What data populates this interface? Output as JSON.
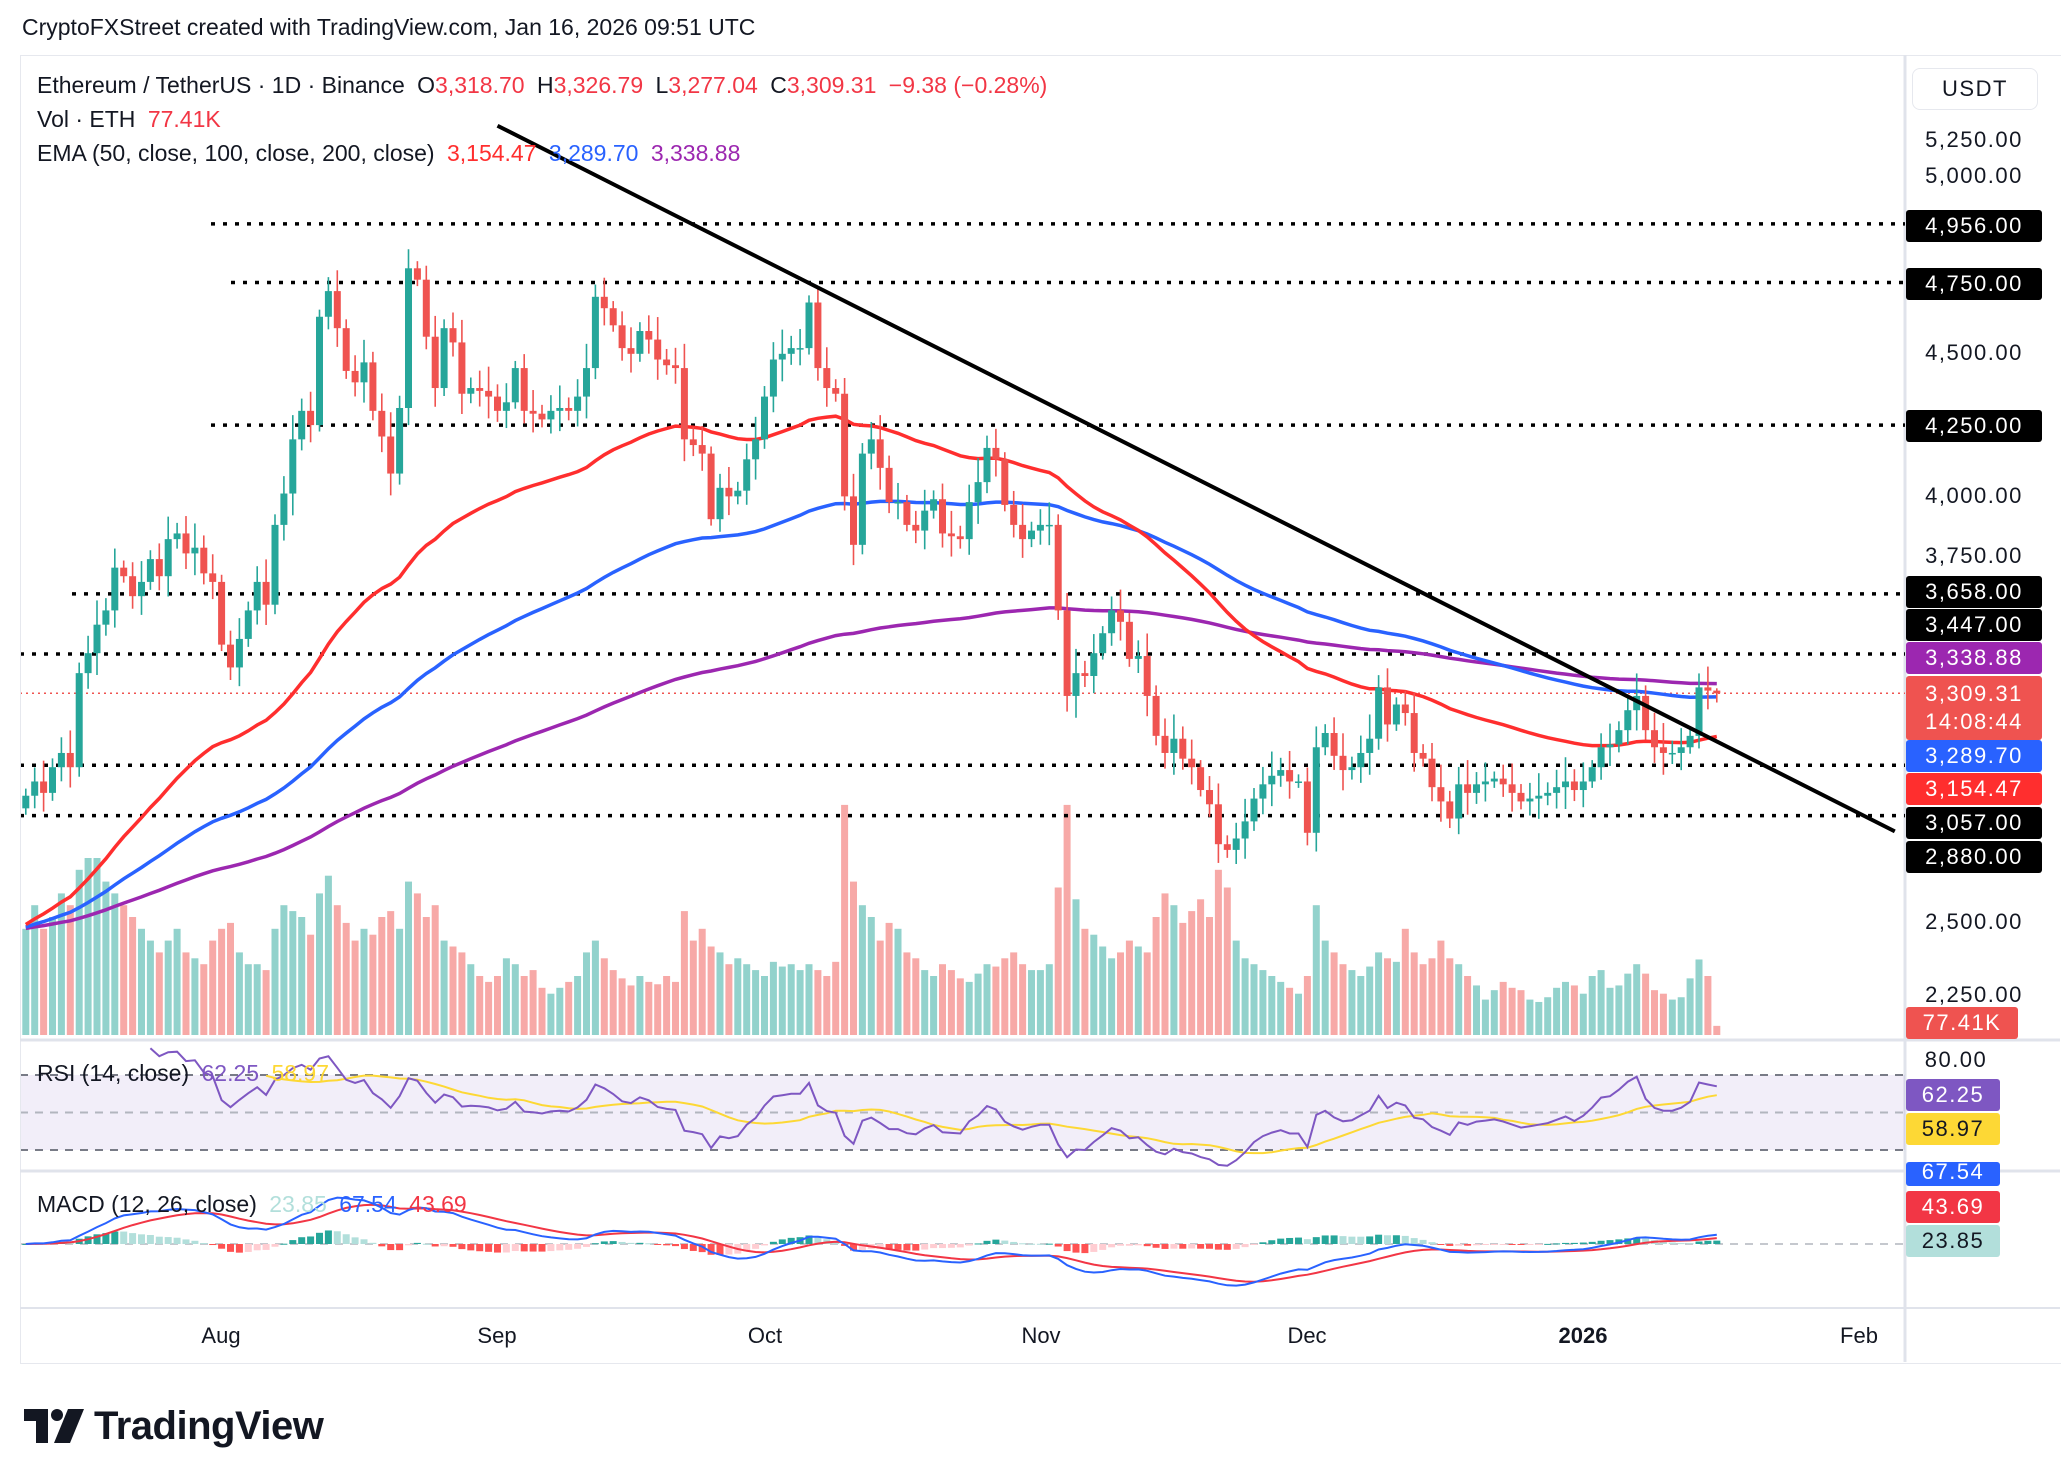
{
  "header": {
    "text": "CryptoFXStreet created with TradingView.com, Jan 16, 2026 09:51 UTC"
  },
  "legend": {
    "symbol": "Ethereum / TetherUS · 1D · Binance",
    "o_label": "O",
    "o": "3,318.70",
    "h_label": "H",
    "h": "3,326.79",
    "l_label": "L",
    "l": "3,277.04",
    "c_label": "C",
    "c": "3,309.31",
    "change": "−9.38 (−0.28%)",
    "vol_label": "Vol · ETH",
    "vol": "77.41K",
    "ema_label": "EMA (50, close, 100, close, 200, close)",
    "ema50": "3,154.47",
    "ema100": "3,289.70",
    "ema200": "3,338.88",
    "rsi_label": "RSI (14, close)",
    "rsi": "62.25",
    "rsi_ma": "58.97",
    "macd_label": "MACD (12, 26, close)",
    "macd_hist": "23.85",
    "macd": "67.54",
    "macd_signal": "43.69"
  },
  "price_axis": {
    "currency": "USDT",
    "ticks": [
      "5,250.00",
      "5,000.00",
      "4,500.00",
      "4,000.00",
      "3,750.00",
      "2,500.00",
      "2,250.00"
    ],
    "level_labels": [
      "4,956.00",
      "4,750.00",
      "4,250.00",
      "3,658.00",
      "3,447.00",
      "3,057.00",
      "2,880.00"
    ],
    "ema200_label": "3,338.88",
    "price_label": "3,309.31",
    "countdown": "14:08:44",
    "ema100_label": "3,289.70",
    "ema50_label": "3,154.47",
    "volume_label": "77.41K",
    "rsi_tick": "80.00",
    "rsi_label": "62.25",
    "rsi_ma_label": "58.97",
    "macd_label": "67.54",
    "signal_label": "43.69",
    "hist_label": "23.85"
  },
  "time_axis": [
    "Aug",
    "Sep",
    "Oct",
    "Nov",
    "Dec",
    "2026",
    "Feb"
  ],
  "logo": {
    "text": "TradingView"
  },
  "colors": {
    "up": "#26A69A",
    "down": "#EF5350",
    "vol_up": "#92D2CC",
    "vol_down": "#F7A9A7",
    "ema50": "#FF2E2E",
    "ema100": "#2962FF",
    "ema200": "#9C27B0",
    "rsi": "#7E57C2",
    "rsi_ma": "#FDD835",
    "macd": "#2962FF",
    "signal": "#F23645",
    "level": "#000000",
    "trendline": "#000000"
  },
  "chart_data": {
    "type": "candlestick",
    "symbol": "ETHUSDT",
    "interval": "1D",
    "start_date": "2025-07-10",
    "end_date": "2026-01-16",
    "ylim": [
      2000,
      5400
    ],
    "price_scale": "linear",
    "grid": false,
    "close": [
      2950,
      3000,
      2960,
      3050,
      3100,
      3050,
      3380,
      3450,
      3550,
      3600,
      3750,
      3720,
      3650,
      3700,
      3780,
      3720,
      3850,
      3870,
      3800,
      3820,
      3730,
      3700,
      3480,
      3400,
      3500,
      3600,
      3700,
      3620,
      3900,
      4010,
      4200,
      4300,
      4250,
      4630,
      4720,
      4590,
      4440,
      4400,
      4470,
      4300,
      4210,
      4080,
      4310,
      4800,
      4760,
      4560,
      4380,
      4590,
      4540,
      4360,
      4380,
      4370,
      4350,
      4300,
      4330,
      4450,
      4300,
      4290,
      4270,
      4300,
      4310,
      4300,
      4350,
      4450,
      4700,
      4660,
      4600,
      4520,
      4500,
      4580,
      4550,
      4480,
      4460,
      4450,
      4200,
      4180,
      4150,
      3920,
      4030,
      4000,
      4020,
      4130,
      4200,
      4350,
      4480,
      4500,
      4520,
      4520,
      4680,
      4450,
      4380,
      4360,
      4000,
      3830,
      4150,
      4200,
      4100,
      3980,
      3980,
      3900,
      3880,
      3950,
      3990,
      3870,
      3860,
      3850,
      3980,
      4050,
      4170,
      4130,
      3970,
      3900,
      3850,
      3880,
      3900,
      3900,
      3600,
      3300,
      3380,
      3370,
      3450,
      3520,
      3600,
      3560,
      3430,
      3440,
      3300,
      3160,
      3100,
      3150,
      3080,
      3050,
      2970,
      2920,
      2780,
      2760,
      2800,
      2860,
      2940,
      2990,
      3020,
      3040,
      3000,
      3000,
      2820,
      3120,
      3170,
      3090,
      3040,
      3050,
      3100,
      3150,
      3330,
      3200,
      3270,
      3240,
      3100,
      3080,
      2980,
      2930,
      2870,
      2990,
      2960,
      2990,
      3000,
      3010,
      2990,
      2960,
      2930,
      2940,
      2950,
      2960,
      2980,
      3000,
      2970,
      3000,
      3050,
      3120,
      3130,
      3180,
      3250,
      3300,
      3180,
      3120,
      3100,
      3100,
      3120,
      3160,
      3330,
      3318.7,
      3309.31
    ],
    "volume_k": [
      900,
      1100,
      900,
      1000,
      1200,
      1100,
      1400,
      1500,
      1500,
      1300,
      1200,
      1100,
      1000,
      900,
      800,
      700,
      800,
      900,
      700,
      650,
      600,
      800,
      900,
      950,
      700,
      600,
      600,
      550,
      900,
      1100,
      1050,
      1000,
      850,
      1200,
      1350,
      1100,
      950,
      800,
      900,
      850,
      1000,
      1050,
      900,
      1300,
      1200,
      1000,
      1100,
      800,
      750,
      700,
      600,
      500,
      450,
      500,
      650,
      600,
      500,
      550,
      400,
      350,
      400,
      450,
      500,
      700,
      800,
      650,
      550,
      480,
      420,
      500,
      450,
      430,
      500,
      450,
      1050,
      800,
      900,
      750,
      700,
      600,
      650,
      600,
      550,
      500,
      620,
      580,
      600,
      550,
      600,
      550,
      500,
      620,
      1950,
      1300,
      1100,
      1000,
      800,
      950,
      900,
      700,
      650,
      550,
      500,
      600,
      550,
      480,
      450,
      520,
      600,
      580,
      650,
      700,
      600,
      550,
      550,
      600,
      1250,
      1950,
      1150,
      900,
      850,
      750,
      650,
      700,
      800,
      750,
      700,
      1000,
      1200,
      1100,
      950,
      1050,
      1150,
      1000,
      1400,
      1250,
      800,
      650,
      600,
      550,
      500,
      450,
      400,
      350,
      500,
      1100,
      800,
      700,
      600,
      550,
      500,
      580,
      700,
      650,
      620,
      900,
      700,
      600,
      650,
      800,
      650,
      600,
      500,
      420,
      300,
      380,
      450,
      400,
      380,
      300,
      280,
      320,
      400,
      450,
      420,
      350,
      500,
      550,
      400,
      420,
      520,
      600,
      520,
      380,
      350,
      300,
      320,
      480,
      640,
      500,
      77.41
    ],
    "ema_start": {
      "ema50": 2480,
      "ema100": 2480,
      "ema200": 2480
    },
    "horizontal_levels": [
      4956,
      4750,
      4250,
      3658,
      3447,
      3057,
      2880
    ],
    "trendline": [
      {
        "date": "2025-09-01",
        "price": 5300
      },
      {
        "date": "2026-02-05",
        "price": 2825
      }
    ],
    "last_price": 3309.31,
    "rsi_levels": [
      70,
      50,
      30
    ]
  }
}
